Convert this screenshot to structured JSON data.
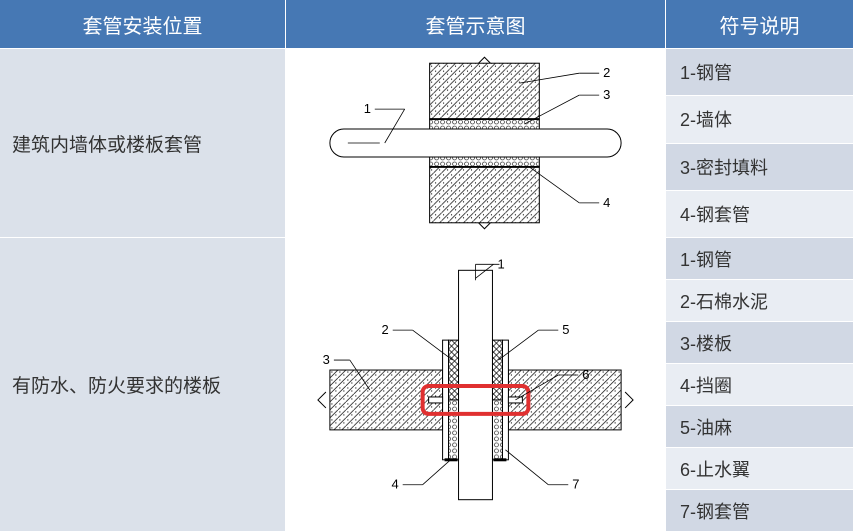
{
  "colors": {
    "header_bg": "#4678b4",
    "header_text": "#ffffff",
    "stripe_a": "#d1d8e4",
    "stripe_b": "#e9edf3",
    "diagram_bg": "#ffffff",
    "text": "#333333",
    "line": "#000000",
    "highlight": "#e03030"
  },
  "headers": {
    "col1": "套管安装位置",
    "col2": "套管示意图",
    "col3": "符号说明"
  },
  "rows": [
    {
      "title": "建筑内墙体或楼板套管",
      "legend": [
        {
          "n": "1",
          "label": "钢管"
        },
        {
          "n": "2",
          "label": "墙体"
        },
        {
          "n": "3",
          "label": "密封填料"
        },
        {
          "n": "4",
          "label": "钢套管"
        }
      ],
      "diagram": "horizontal"
    },
    {
      "title": "有防水、防火要求的楼板",
      "legend": [
        {
          "n": "1",
          "label": "钢管"
        },
        {
          "n": "2",
          "label": "石棉水泥"
        },
        {
          "n": "3",
          "label": "楼板"
        },
        {
          "n": "4",
          "label": "挡圈"
        },
        {
          "n": "5",
          "label": "油麻"
        },
        {
          "n": "6",
          "label": "止水翼"
        },
        {
          "n": "7",
          "label": "钢套管"
        }
      ],
      "diagram": "vertical",
      "highlight": true
    }
  ],
  "fonts": {
    "header_size": 20,
    "title_size": 19,
    "legend_size": 18,
    "diagram_label_size": 13
  }
}
